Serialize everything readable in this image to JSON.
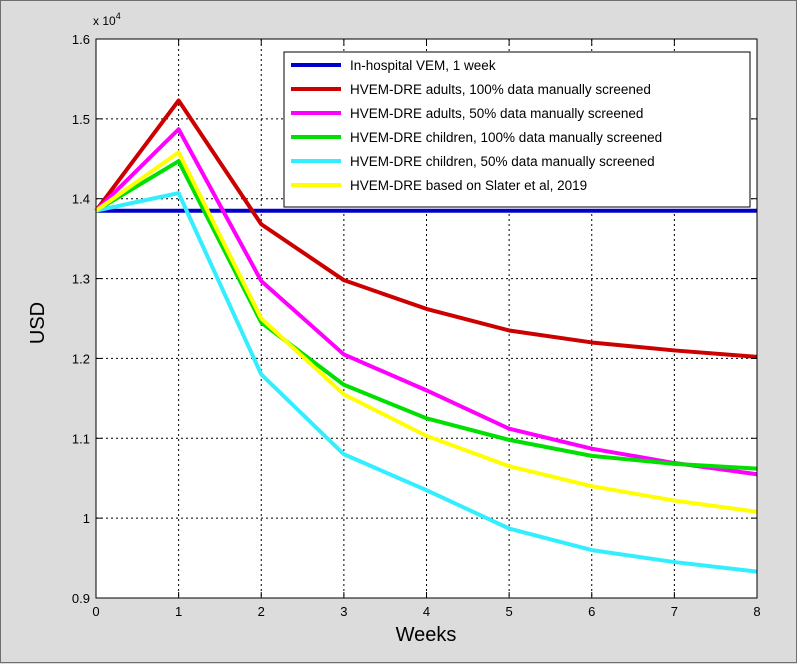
{
  "chart_data": {
    "type": "line",
    "title": "",
    "xlabel": "Weeks",
    "ylabel": "USD",
    "y_multiplier_label": "x 10",
    "y_multiplier_exponent": "4",
    "xlim": [
      0,
      8
    ],
    "ylim": [
      0.9,
      1.6
    ],
    "x_ticks": [
      0,
      1,
      2,
      3,
      4,
      5,
      6,
      7,
      8
    ],
    "x_tick_labels": [
      "0",
      "1",
      "2",
      "3",
      "4",
      "5",
      "6",
      "7",
      "8"
    ],
    "y_ticks": [
      0.9,
      1.0,
      1.1,
      1.2,
      1.3,
      1.4,
      1.5,
      1.6
    ],
    "y_tick_labels": [
      "0.9",
      "1",
      "1.1",
      "1.2",
      "1.3",
      "1.4",
      "1.5",
      "1.6"
    ],
    "grid": true,
    "legend_position": "top-right",
    "x": [
      0,
      1,
      2,
      3,
      4,
      5,
      6,
      7,
      8
    ],
    "series": [
      {
        "name": "In-hospital VEM, 1 week",
        "color": "#0000cc",
        "values": [
          1.385,
          1.385,
          1.385,
          1.385,
          1.385,
          1.385,
          1.385,
          1.385,
          1.385
        ]
      },
      {
        "name": "HVEM-DRE adults, 100% data manually screened",
        "color": "#cc0000",
        "values": [
          1.385,
          1.523,
          1.368,
          1.298,
          1.262,
          1.235,
          1.22,
          1.21,
          1.202
        ]
      },
      {
        "name": "HVEM-DRE adults, 50% data manually screened",
        "color": "#ff00ff",
        "values": [
          1.385,
          1.487,
          1.297,
          1.205,
          1.16,
          1.112,
          1.087,
          1.069,
          1.055
        ]
      },
      {
        "name": "HVEM-DRE children, 100% data manually screened",
        "color": "#00e000",
        "values": [
          1.385,
          1.447,
          1.245,
          1.167,
          1.125,
          1.098,
          1.078,
          1.068,
          1.062
        ]
      },
      {
        "name": "HVEM-DRE children, 50% data manually screened",
        "color": "#33eeff",
        "values": [
          1.385,
          1.407,
          1.18,
          1.08,
          1.035,
          0.987,
          0.96,
          0.945,
          0.933
        ]
      },
      {
        "name": "HVEM-DRE based on Slater et al, 2019",
        "color": "#ffff00",
        "values": [
          1.385,
          1.458,
          1.25,
          1.155,
          1.103,
          1.065,
          1.04,
          1.022,
          1.008
        ]
      }
    ]
  }
}
